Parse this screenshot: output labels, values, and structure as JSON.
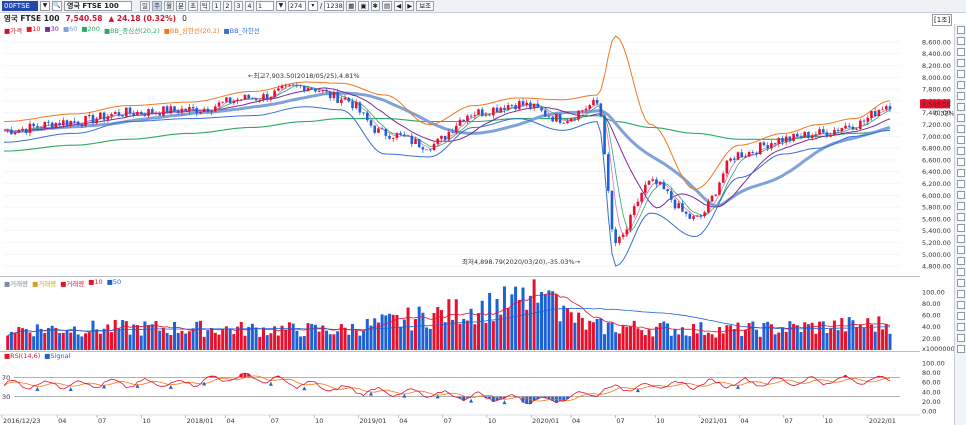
{
  "toolbar": {
    "code": "00FTSE",
    "name": "영국 FTSE 100",
    "buttons": [
      "일",
      "주",
      "월",
      "분",
      "초",
      "틱",
      "1",
      "2",
      "3",
      "4",
      "1"
    ],
    "count": "274",
    "total": "1238",
    "view_label": "보조"
  },
  "info": {
    "name": "영국 FTSE 100",
    "price": "7,540.58",
    "change": "▲ 24.18 (0.32%)",
    "extra": "0"
  },
  "view_toggle": "[1조]",
  "legends": {
    "price": [
      "■가격",
      "■10",
      "■30",
      "■60",
      "■200",
      "■BB_중심선(20,2)",
      "■BB_상한선(20,2)",
      "■BB_하한선"
    ],
    "volume": [
      "■거래량",
      "■거래량",
      "■거래량",
      "■10",
      "■50"
    ],
    "rsi": [
      "■RSI(14,6)",
      "■Signal"
    ]
  },
  "annotations": {
    "high": "←최고7,903.50(2018/05/25),4.81%",
    "low": "최저4,898.79(2020/03/20),-35.03%→"
  },
  "price_axis": [
    "8,600.00",
    "8,400.00",
    "8,200.00",
    "8,000.00",
    "7,800.00",
    "7,600.00",
    "7,400.00",
    "7,200.00",
    "7,000.00",
    "6,800.00",
    "6,600.00",
    "6,400.00",
    "6,200.00",
    "6,000.00",
    "5,800.00",
    "5,600.00",
    "5,400.00",
    "5,200.00",
    "5,000.00",
    "4,800.00"
  ],
  "last_price_tag": "7,540.58",
  "last_pct_tag": "0.32%",
  "volume_axis": [
    "100.00",
    "80.00",
    "60.00",
    "40.00",
    "20.00",
    "x1000000"
  ],
  "rsi_axis": [
    "100.00",
    "80.00",
    "60.00",
    "40.00",
    "20.00",
    "0.00"
  ],
  "rsi_levels": [
    "70",
    "30"
  ],
  "date_axis": [
    "2016/12/23",
    "04",
    "07",
    "10",
    "2018/01",
    "04",
    "07",
    "10",
    "2019/01",
    "04",
    "07",
    "10",
    "2020/01",
    "04",
    "07",
    "10",
    "2021/01",
    "04",
    "07",
    "10",
    "2022/01"
  ],
  "colors": {
    "up": "#e8112d",
    "down": "#1c62d6",
    "bb_upper": "#f07820",
    "bb_lower": "#3a6fd0",
    "ma200": "#2daa66",
    "ma_purple": "#7a2aa0",
    "ma_thick": "#7fa2d8"
  },
  "chart_data": [
    {
      "type": "line",
      "title": "영국 FTSE 100",
      "series_note": "weekly candles; approximate close values read from axis",
      "x": [
        "2016/12",
        "2017/04",
        "2017/07",
        "2017/10",
        "2018/01",
        "2018/05",
        "2018/07",
        "2018/10",
        "2019/01",
        "2019/04",
        "2019/07",
        "2019/10",
        "2020/01",
        "2020/03",
        "2020/06",
        "2020/10",
        "2021/01",
        "2021/04",
        "2021/07",
        "2021/10",
        "2022/01"
      ],
      "series": [
        {
          "name": "가격",
          "values": [
            7100,
            7250,
            7400,
            7450,
            7650,
            7850,
            7650,
            7050,
            6850,
            7400,
            7550,
            7300,
            7550,
            5190,
            6200,
            5600,
            6700,
            6950,
            7050,
            7200,
            7540
          ]
        },
        {
          "name": "BB_상한선(20,2)",
          "values": [
            7250,
            7380,
            7520,
            7580,
            7760,
            7920,
            7900,
            7700,
            7200,
            7520,
            7650,
            7620,
            7700,
            8700,
            7200,
            6100,
            6850,
            7050,
            7200,
            7300,
            7600
          ]
        },
        {
          "name": "BB_하한선",
          "values": [
            6900,
            7050,
            7250,
            7300,
            7350,
            7500,
            7450,
            6700,
            6650,
            7150,
            7300,
            7100,
            7250,
            4800,
            5700,
            5300,
            6300,
            6700,
            6800,
            7000,
            7100
          ]
        },
        {
          "name": "200",
          "values": [
            6750,
            6850,
            6950,
            7050,
            7150,
            7250,
            7300,
            7300,
            7250,
            7250,
            7300,
            7300,
            7350,
            7250,
            7150,
            7050,
            6950,
            6950,
            7000,
            7050,
            7100
          ]
        }
      ],
      "ylim": [
        4700,
        8700
      ]
    },
    {
      "type": "bar",
      "title": "거래량",
      "ylabel": "x1000000",
      "categories": [
        "2017",
        "2018",
        "2019",
        "2020/03",
        "2020",
        "2021",
        "2022/01"
      ],
      "values": [
        40,
        42,
        38,
        98,
        45,
        38,
        50
      ],
      "ylim": [
        0,
        110
      ]
    },
    {
      "type": "line",
      "title": "RSI(14,6)",
      "x": [
        "2017",
        "2018",
        "2018/05",
        "2019",
        "2020/03",
        "2020",
        "2021",
        "2022/01"
      ],
      "series": [
        {
          "name": "RSI",
          "values": [
            55,
            58,
            72,
            45,
            22,
            50,
            60,
            66
          ]
        },
        {
          "name": "Signal",
          "values": [
            54,
            56,
            68,
            47,
            28,
            49,
            58,
            63
          ]
        }
      ],
      "ylim": [
        0,
        100
      ]
    }
  ]
}
